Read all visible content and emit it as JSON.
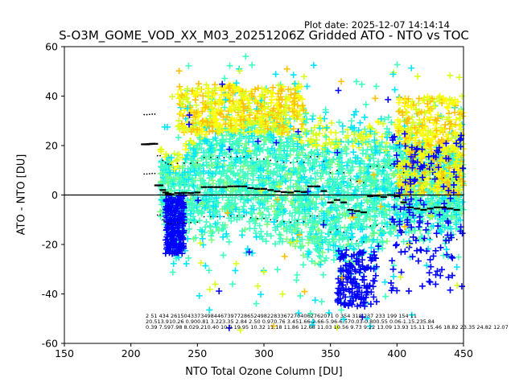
{
  "chart_data": {
    "type": "scatter",
    "title": "S-O3M_GOME_VOD_XX_M03_20251206Z Gridded ATO - NTO vs TOC",
    "plot_date": "Plot date: 2025-12-07 14:14:14",
    "xlabel": "NTO Total Ozone Column [DU]",
    "ylabel": "ATO - NTO [DU]",
    "xlim": [
      150,
      450
    ],
    "ylim": [
      -60,
      60
    ],
    "xticks": [
      150,
      200,
      250,
      300,
      350,
      400,
      450
    ],
    "yticks": [
      -60,
      -40,
      -20,
      0,
      20,
      40,
      60
    ],
    "zero_line": 0,
    "marker": "+",
    "colors": {
      "blue": "#0000ff",
      "cyan": "#00e5ff",
      "aquamarine": "#40ffc0",
      "green": "#7dff7d",
      "yellow_green": "#d8ff20",
      "yellow": "#ffff00",
      "orange": "#ffc000",
      "black": "#000000"
    },
    "cloud": {
      "main": [
        [
          220,
          8,
          16
        ],
        [
          232,
          -4,
          22
        ],
        [
          245,
          5,
          26
        ],
        [
          260,
          8,
          28
        ],
        [
          275,
          10,
          30
        ],
        [
          290,
          12,
          30
        ],
        [
          305,
          10,
          30
        ],
        [
          320,
          6,
          30
        ],
        [
          335,
          2,
          32
        ],
        [
          350,
          0,
          32
        ],
        [
          365,
          0,
          30
        ],
        [
          380,
          4,
          30
        ],
        [
          395,
          5,
          28
        ],
        [
          410,
          6,
          26
        ],
        [
          425,
          5,
          24
        ],
        [
          440,
          5,
          22
        ],
        [
          450,
          5,
          20
        ]
      ],
      "blue_clusters": [
        {
          "x": [
            226,
            240
          ],
          "y": [
            -24,
            0
          ]
        },
        {
          "x": [
            355,
            385
          ],
          "y": [
            -45,
            -22
          ]
        },
        {
          "x": [
            395,
            450
          ],
          "y": [
            -40,
            25
          ]
        }
      ],
      "yellow_bands": [
        {
          "x": [
            235,
            330
          ],
          "y": [
            25,
            45
          ]
        },
        {
          "x": [
            400,
            450
          ],
          "y": [
            0,
            40
          ]
        }
      ]
    },
    "binned_medians": {
      "x": [
        210,
        212,
        214,
        216,
        218,
        220,
        222,
        224,
        226,
        228,
        230,
        235,
        240,
        245,
        250,
        255,
        260,
        265,
        270,
        275,
        280,
        285,
        290,
        295,
        300,
        305,
        310,
        315,
        320,
        325,
        330,
        335,
        340,
        345,
        350,
        355,
        360,
        365,
        370,
        375,
        380,
        385,
        390,
        395,
        400,
        405,
        410,
        415,
        420,
        425,
        430,
        435,
        440,
        445
      ],
      "y": [
        20.5,
        20.5,
        20.6,
        20.7,
        20.7,
        3.9,
        3.9,
        2.0,
        1.0,
        0.5,
        0.3,
        0.8,
        0.9,
        0.8,
        1.0,
        3.2,
        3.2,
        3.2,
        3.2,
        3.5,
        3.5,
        3.5,
        2.8,
        2.5,
        2.5,
        2.0,
        1.5,
        1.2,
        1.0,
        1.5,
        1.2,
        3.5,
        3.5,
        1.6,
        -3.0,
        -2.0,
        -3.0,
        -6.0,
        -6.5,
        -7.0,
        -0.5,
        -0.3,
        -0.8,
        0.0,
        -0.5,
        -3.0,
        -5.0,
        -5.5,
        -6.0,
        -5.5,
        -5.0,
        -5.0,
        -5.5,
        -6.0
      ]
    },
    "stats_text": {
      "row1": "2     51   434 2615043373498446739772865249822833672704062762071 0   354    318  237 233 199 154  11",
      "row2": "20.513.910.26 0.900.81 3.223.35 2.84 2.50 0.970.76 3.451.66-2.66-5.96-6.570.03-0.800.55 0.06-1.15.235.84",
      "row3": "0.39 7.597.98 8.029.210.40 10.0 19.95 10.32 11.18 11.86 12.68 11.03 10.56 9.73 9.22 13.09 13.93 15.11 15.46 18.82 23.35 24.82 12.07"
    }
  }
}
